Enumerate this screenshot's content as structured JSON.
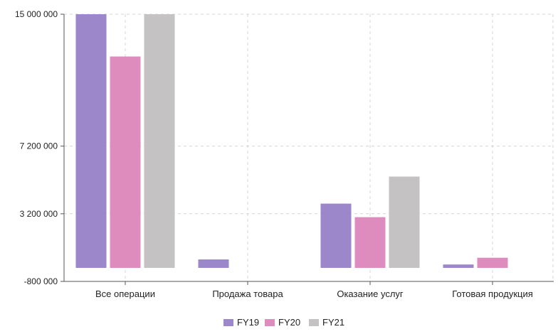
{
  "chart_data": {
    "type": "bar",
    "categories": [
      "Все операции",
      "Продажа товара",
      "Оказание услуг",
      "Готовая продукция"
    ],
    "series": [
      {
        "name": "FY19",
        "color": "#9b87c9",
        "values": [
          15000000,
          500000,
          3800000,
          200000
        ]
      },
      {
        "name": "FY20",
        "color": "#dd8cbd",
        "values": [
          12500000,
          0,
          3000000,
          600000
        ]
      },
      {
        "name": "FY21",
        "color": "#c4c2c3",
        "values": [
          15000000,
          0,
          5400000,
          0
        ]
      }
    ],
    "ylim": [
      -800000,
      15000000
    ],
    "y_ticks": [
      {
        "value": -800000,
        "label": "-800 000"
      },
      {
        "value": 3200000,
        "label": "3 200 000"
      },
      {
        "value": 7200000,
        "label": "7 200 000"
      },
      {
        "value": 15000000,
        "label": "15 000 000"
      }
    ],
    "title": "",
    "xlabel": "",
    "ylabel": "",
    "grid": true,
    "legend_position": "bottom"
  }
}
